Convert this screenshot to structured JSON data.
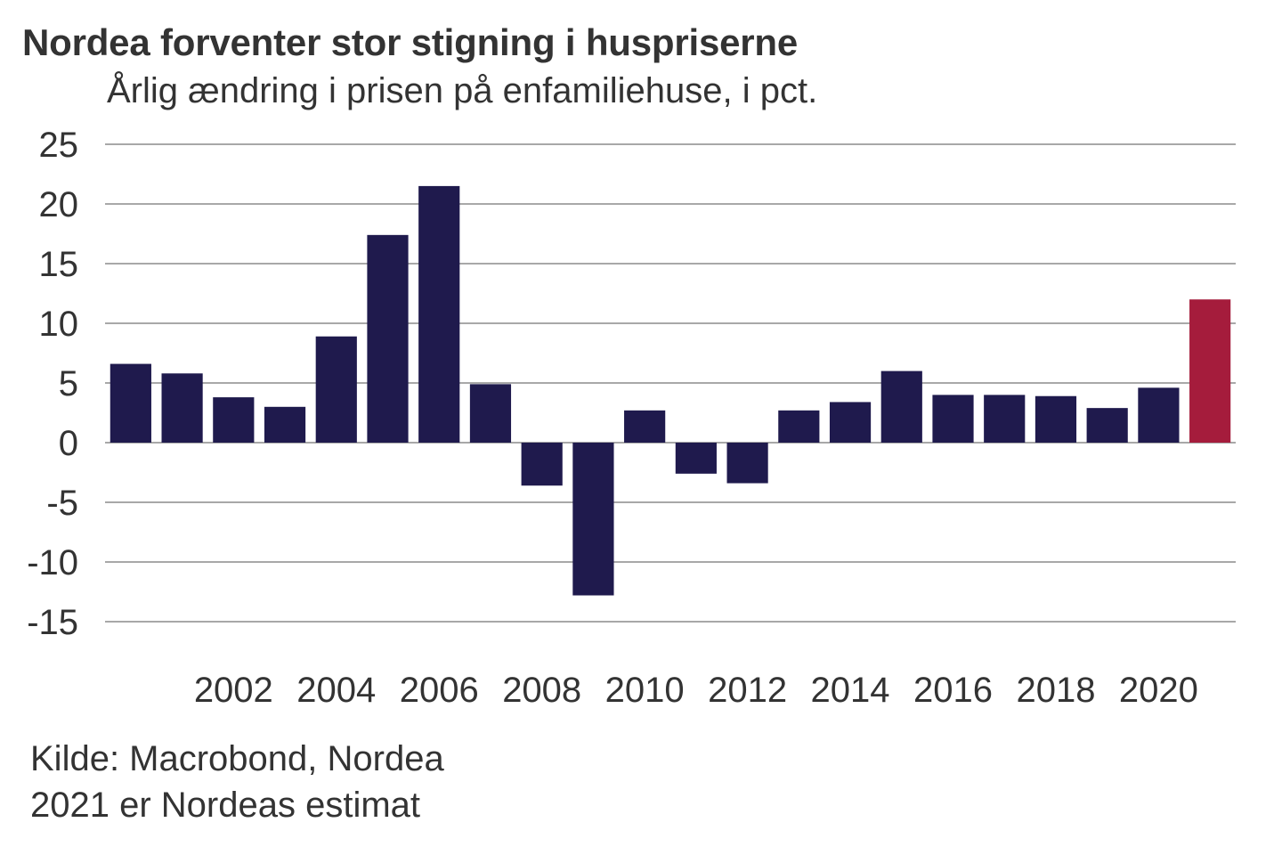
{
  "title": "Nordea forventer stor stigning i huspriserne",
  "subtitle": "Årlig ændring i prisen på enfamiliehuse, i pct.",
  "source": {
    "line1": "Kilde: Macrobond, Nordea",
    "line2": "2021 er Nordeas estimat"
  },
  "chart_data": {
    "type": "bar",
    "title": "Nordea forventer stor stigning i huspriserne",
    "subtitle": "Årlig ændring i prisen på enfamiliehuse, i pct.",
    "categories": [
      "2000",
      "2001",
      "2002",
      "2003",
      "2004",
      "2005",
      "2006",
      "2007",
      "2008",
      "2009",
      "2010",
      "2011",
      "2012",
      "2013",
      "2014",
      "2015",
      "2016",
      "2017",
      "2018",
      "2019",
      "2020",
      "2021"
    ],
    "values": [
      6.6,
      5.8,
      3.8,
      3.0,
      8.9,
      17.4,
      21.5,
      4.9,
      -3.6,
      -12.8,
      2.7,
      -2.6,
      -3.4,
      2.7,
      3.4,
      6.0,
      4.0,
      4.0,
      3.9,
      2.9,
      4.6,
      12.0
    ],
    "estimate_from": "2021",
    "colors": {
      "actual": "#1f1a4d",
      "estimate": "#a51c3c",
      "grid": "#8c8c8c"
    },
    "ylim": [
      -15,
      25
    ],
    "yticks": [
      25,
      20,
      15,
      10,
      5,
      0,
      -5,
      -10,
      -15
    ],
    "xtick_labels": [
      "2002",
      "2004",
      "2006",
      "2008",
      "2010",
      "2012",
      "2014",
      "2016",
      "2018",
      "2020"
    ],
    "grid": true,
    "legend": "none"
  }
}
